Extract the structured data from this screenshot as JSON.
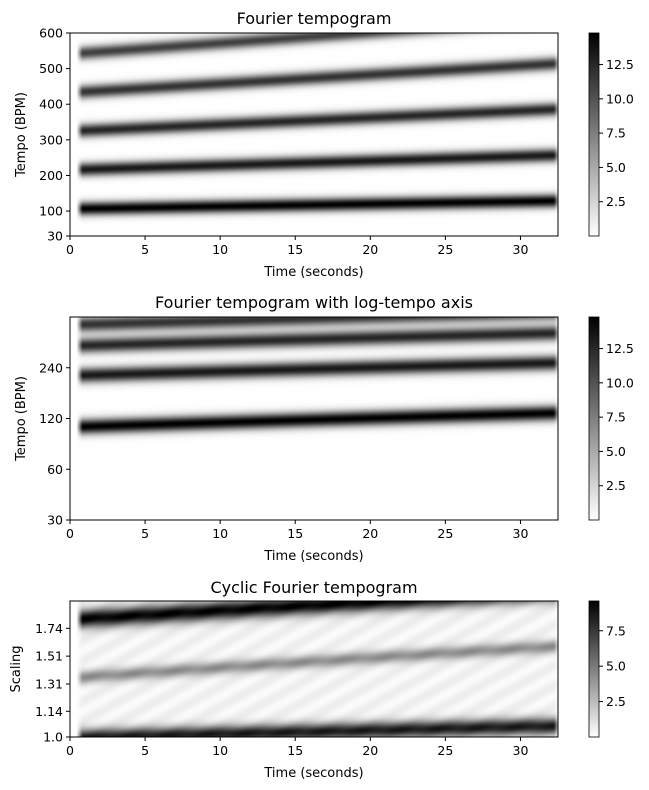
{
  "colors": {
    "cmap_low": "#ffffff",
    "cmap_high": "#000000"
  },
  "chart_data": [
    {
      "type": "heatmap",
      "title": "Fourier tempogram",
      "xlabel": "Time (seconds)",
      "ylabel": "Tempo (BPM)",
      "xlim": [
        0,
        32.5
      ],
      "ylim": [
        30,
        600
      ],
      "y_scale": "linear",
      "x_ticks": [
        "0",
        "5",
        "10",
        "15",
        "20",
        "25",
        "30"
      ],
      "x_tick_values": [
        0,
        5,
        10,
        15,
        20,
        25,
        30
      ],
      "y_ticks": [
        "30",
        "100",
        "200",
        "300",
        "400",
        "500",
        "600"
      ],
      "y_tick_values": [
        30,
        100,
        200,
        300,
        400,
        500,
        600
      ],
      "colorbar": {
        "min": 0,
        "max": 14.8,
        "ticks": [
          "2.5",
          "5.0",
          "7.5",
          "10.0",
          "12.5"
        ],
        "tick_values": [
          2.5,
          5.0,
          7.5,
          10.0,
          12.5
        ]
      },
      "data_start": 0.8,
      "data_end": 32.2,
      "ridges": [
        {
          "start": 108,
          "end": 130,
          "strength": 1.0,
          "sigma": 8
        },
        {
          "start": 218,
          "end": 258,
          "strength": 0.9,
          "sigma": 8
        },
        {
          "start": 327,
          "end": 387,
          "strength": 0.85,
          "sigma": 8
        },
        {
          "start": 436,
          "end": 515,
          "strength": 0.8,
          "sigma": 8
        },
        {
          "start": 545,
          "end": 640,
          "strength": 0.75,
          "sigma": 8
        }
      ]
    },
    {
      "type": "heatmap",
      "title": "Fourier tempogram with log-tempo axis",
      "xlabel": "Time (seconds)",
      "ylabel": "Tempo (BPM)",
      "xlim": [
        0,
        32.5
      ],
      "ylim": [
        30,
        480
      ],
      "y_scale": "log",
      "x_ticks": [
        "0",
        "5",
        "10",
        "15",
        "20",
        "25",
        "30"
      ],
      "x_tick_values": [
        0,
        5,
        10,
        15,
        20,
        25,
        30
      ],
      "y_ticks": [
        "30",
        "60",
        "120",
        "240"
      ],
      "y_tick_values": [
        30,
        60,
        120,
        240
      ],
      "colorbar": {
        "min": 0,
        "max": 14.8,
        "ticks": [
          "2.5",
          "5.0",
          "7.5",
          "10.0",
          "12.5"
        ],
        "tick_values": [
          2.5,
          5.0,
          7.5,
          10.0,
          12.5
        ]
      },
      "data_start": 0.8,
      "data_end": 32.2,
      "ridges": [
        {
          "start": 108,
          "end": 130,
          "strength": 1.0,
          "sigma": 9
        },
        {
          "start": 218,
          "end": 258,
          "strength": 0.9,
          "sigma": 9
        },
        {
          "start": 327,
          "end": 387,
          "strength": 0.85,
          "sigma": 9
        },
        {
          "start": 436,
          "end": 515,
          "strength": 0.8,
          "sigma": 9
        }
      ]
    },
    {
      "type": "heatmap",
      "title": "Cyclic Fourier tempogram",
      "xlabel": "Time (seconds)",
      "ylabel": "Scaling",
      "xlim": [
        0,
        32.5
      ],
      "ylim": [
        1.0,
        2.0
      ],
      "y_scale": "log",
      "x_ticks": [
        "0",
        "5",
        "10",
        "15",
        "20",
        "25",
        "30"
      ],
      "x_tick_values": [
        0,
        5,
        10,
        15,
        20,
        25,
        30
      ],
      "y_ticks": [
        "1.0",
        "1.14",
        "1.31",
        "1.51",
        "1.74"
      ],
      "y_tick_values": [
        1.0,
        1.14,
        1.31,
        1.51,
        1.74
      ],
      "colorbar": {
        "min": 0,
        "max": 9.6,
        "ticks": [
          "2.5",
          "5.0",
          "7.5"
        ],
        "tick_values": [
          2.5,
          5.0,
          7.5
        ]
      },
      "data_start": 0.8,
      "data_end": 32.2,
      "ridges": [
        {
          "start": 1.83,
          "end": 2.1,
          "strength": 0.95,
          "sigma": 11
        },
        {
          "start": 1.36,
          "end": 1.59,
          "strength": 0.4,
          "sigma": 8
        },
        {
          "start": 1.0,
          "end": 1.06,
          "strength": 0.85,
          "sigma": 10
        }
      ],
      "background_level": 0.07
    }
  ]
}
